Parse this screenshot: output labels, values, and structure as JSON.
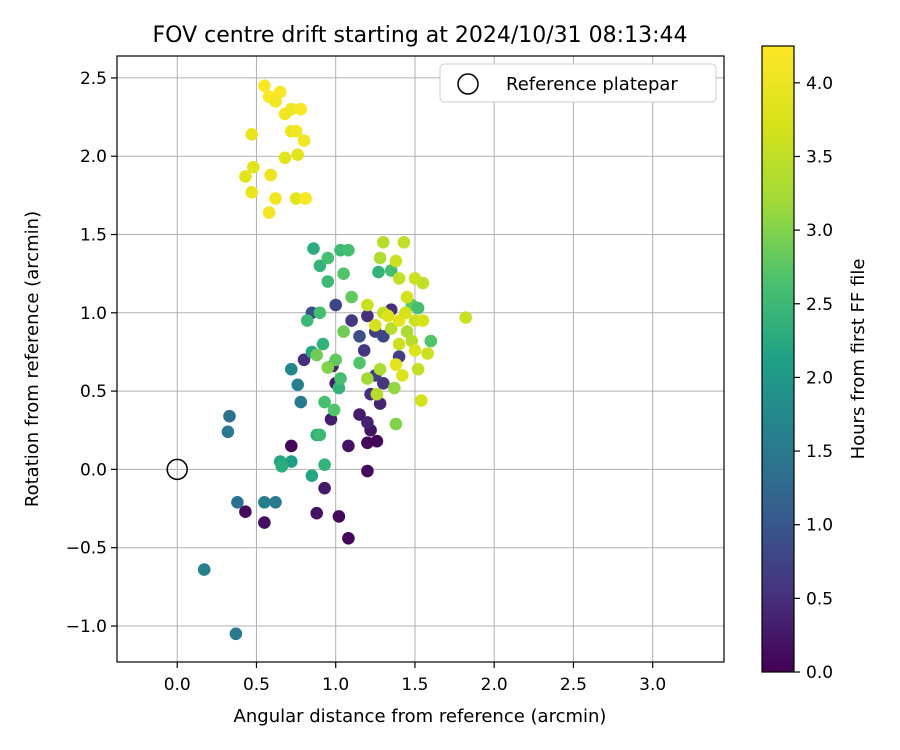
{
  "chart_data": {
    "type": "scatter",
    "title": "FOV centre drift starting at 2024/10/31 08:13:44",
    "xlabel": "Angular distance from reference (arcmin)",
    "ylabel": "Rotation from reference (arcmin)",
    "xlim": [
      -0.38,
      3.45
    ],
    "ylim": [
      -1.23,
      2.64
    ],
    "xticks": [
      0.0,
      0.5,
      1.0,
      1.5,
      2.0,
      2.5,
      3.0
    ],
    "xtick_labels": [
      "0.0",
      "0.5",
      "1.0",
      "1.5",
      "2.0",
      "2.5",
      "3.0"
    ],
    "yticks": [
      -1.0,
      -0.5,
      0.0,
      0.5,
      1.0,
      1.5,
      2.0,
      2.5
    ],
    "ytick_labels": [
      "−1.0",
      "−0.5",
      "0.0",
      "0.5",
      "1.0",
      "1.5",
      "2.0",
      "2.5"
    ],
    "grid": true,
    "legend": {
      "position": "top-right",
      "entries": [
        {
          "label": "Reference platepar",
          "marker": "open-circle"
        }
      ]
    },
    "reference_point": {
      "x": 0.0,
      "y": 0.0
    },
    "colorbar": {
      "label": "Hours from first FF file",
      "range": [
        0.0,
        4.25
      ],
      "ticks": [
        0.0,
        0.5,
        1.0,
        1.5,
        2.0,
        2.5,
        3.0,
        3.5,
        4.0
      ],
      "tick_labels": [
        "0.0",
        "0.5",
        "1.0",
        "1.5",
        "2.0",
        "2.5",
        "3.0",
        "3.5",
        "4.0"
      ],
      "colormap": "viridis"
    },
    "series": [
      {
        "points": [
          {
            "x": 0.43,
            "y": -0.27,
            "c": 0.1
          },
          {
            "x": 0.55,
            "y": -0.34,
            "c": 0.15
          },
          {
            "x": 0.72,
            "y": 0.15,
            "c": 0.05
          },
          {
            "x": 0.88,
            "y": -0.28,
            "c": 0.2
          },
          {
            "x": 1.02,
            "y": -0.3,
            "c": 0.1
          },
          {
            "x": 1.08,
            "y": -0.44,
            "c": 0.05
          },
          {
            "x": 0.93,
            "y": -0.12,
            "c": 0.25
          },
          {
            "x": 1.08,
            "y": 0.15,
            "c": 0.2
          },
          {
            "x": 1.2,
            "y": 0.17,
            "c": 0.1
          },
          {
            "x": 1.26,
            "y": 0.18,
            "c": 0.05
          },
          {
            "x": 1.2,
            "y": -0.01,
            "c": 0.1
          },
          {
            "x": 1.22,
            "y": 0.25,
            "c": 0.2
          },
          {
            "x": 1.15,
            "y": 0.35,
            "c": 0.3
          },
          {
            "x": 1.2,
            "y": 0.3,
            "c": 0.35
          },
          {
            "x": 0.97,
            "y": 0.32,
            "c": 0.3
          },
          {
            "x": 1.28,
            "y": 0.42,
            "c": 0.4
          },
          {
            "x": 1.22,
            "y": 0.48,
            "c": 0.5
          },
          {
            "x": 1.3,
            "y": 0.55,
            "c": 0.6
          },
          {
            "x": 1.25,
            "y": 0.6,
            "c": 0.7
          },
          {
            "x": 1.0,
            "y": 0.55,
            "c": 0.3
          },
          {
            "x": 0.8,
            "y": 0.7,
            "c": 0.5
          },
          {
            "x": 0.98,
            "y": 0.66,
            "c": 0.4
          },
          {
            "x": 1.1,
            "y": 0.95,
            "c": 0.6
          },
          {
            "x": 1.2,
            "y": 0.98,
            "c": 0.5
          },
          {
            "x": 1.25,
            "y": 0.88,
            "c": 0.7
          },
          {
            "x": 1.3,
            "y": 0.85,
            "c": 0.8
          },
          {
            "x": 1.18,
            "y": 0.76,
            "c": 0.6
          },
          {
            "x": 1.0,
            "y": 1.05,
            "c": 0.8
          },
          {
            "x": 0.85,
            "y": 1.0,
            "c": 0.9
          },
          {
            "x": 1.35,
            "y": 1.02,
            "c": 0.5
          },
          {
            "x": 1.4,
            "y": 0.72,
            "c": 0.7
          },
          {
            "x": 1.15,
            "y": 0.85,
            "c": 0.9
          },
          {
            "x": 0.33,
            "y": 0.34,
            "c": 1.4
          },
          {
            "x": 0.32,
            "y": 0.24,
            "c": 1.5
          },
          {
            "x": 0.38,
            "y": -0.21,
            "c": 1.4
          },
          {
            "x": 0.55,
            "y": -0.21,
            "c": 1.6
          },
          {
            "x": 0.62,
            "y": -0.21,
            "c": 1.5
          },
          {
            "x": 0.17,
            "y": -0.64,
            "c": 1.6
          },
          {
            "x": 0.37,
            "y": -1.05,
            "c": 1.5
          },
          {
            "x": 0.78,
            "y": 0.43,
            "c": 1.5
          },
          {
            "x": 0.76,
            "y": 0.54,
            "c": 1.6
          },
          {
            "x": 0.72,
            "y": 0.64,
            "c": 1.7
          },
          {
            "x": 0.65,
            "y": 0.05,
            "c": 2.2
          },
          {
            "x": 0.72,
            "y": 0.05,
            "c": 2.1
          },
          {
            "x": 0.66,
            "y": 0.02,
            "c": 2.3
          },
          {
            "x": 0.85,
            "y": -0.04,
            "c": 2.2
          },
          {
            "x": 0.93,
            "y": 0.03,
            "c": 2.4
          },
          {
            "x": 0.88,
            "y": 0.22,
            "c": 2.3
          },
          {
            "x": 0.9,
            "y": 0.22,
            "c": 2.5
          },
          {
            "x": 0.93,
            "y": 0.43,
            "c": 2.6
          },
          {
            "x": 0.99,
            "y": 0.38,
            "c": 2.7
          },
          {
            "x": 1.02,
            "y": 0.52,
            "c": 2.4
          },
          {
            "x": 1.03,
            "y": 0.58,
            "c": 2.6
          },
          {
            "x": 0.85,
            "y": 0.75,
            "c": 2.2
          },
          {
            "x": 0.92,
            "y": 0.8,
            "c": 2.4
          },
          {
            "x": 0.82,
            "y": 0.95,
            "c": 2.5
          },
          {
            "x": 0.9,
            "y": 1.0,
            "c": 2.6
          },
          {
            "x": 0.95,
            "y": 1.2,
            "c": 2.5
          },
          {
            "x": 0.9,
            "y": 1.3,
            "c": 2.4
          },
          {
            "x": 0.86,
            "y": 1.41,
            "c": 2.3
          },
          {
            "x": 1.03,
            "y": 1.4,
            "c": 2.5
          },
          {
            "x": 1.08,
            "y": 1.4,
            "c": 2.6
          },
          {
            "x": 1.05,
            "y": 1.25,
            "c": 2.7
          },
          {
            "x": 0.95,
            "y": 1.35,
            "c": 2.6
          },
          {
            "x": 1.1,
            "y": 1.1,
            "c": 2.8
          },
          {
            "x": 1.05,
            "y": 0.88,
            "c": 2.9
          },
          {
            "x": 1.15,
            "y": 0.68,
            "c": 2.7
          },
          {
            "x": 1.27,
            "y": 1.26,
            "c": 2.4
          },
          {
            "x": 1.35,
            "y": 1.27,
            "c": 2.6
          },
          {
            "x": 1.48,
            "y": 1.05,
            "c": 2.8
          },
          {
            "x": 1.52,
            "y": 1.03,
            "c": 2.6
          },
          {
            "x": 1.6,
            "y": 0.82,
            "c": 2.7
          },
          {
            "x": 1.0,
            "y": 0.7,
            "c": 2.8
          },
          {
            "x": 0.95,
            "y": 0.65,
            "c": 3.0
          },
          {
            "x": 0.88,
            "y": 0.73,
            "c": 2.9
          },
          {
            "x": 1.2,
            "y": 0.58,
            "c": 3.2
          },
          {
            "x": 1.28,
            "y": 0.64,
            "c": 3.3
          },
          {
            "x": 1.37,
            "y": 0.52,
            "c": 3.1
          },
          {
            "x": 1.38,
            "y": 0.29,
            "c": 3.0
          },
          {
            "x": 1.26,
            "y": 0.48,
            "c": 3.4
          },
          {
            "x": 1.3,
            "y": 1.45,
            "c": 3.4
          },
          {
            "x": 1.43,
            "y": 1.45,
            "c": 3.5
          },
          {
            "x": 1.38,
            "y": 1.33,
            "c": 3.6
          },
          {
            "x": 1.28,
            "y": 1.35,
            "c": 3.3
          },
          {
            "x": 1.4,
            "y": 1.22,
            "c": 3.5
          },
          {
            "x": 1.5,
            "y": 1.22,
            "c": 3.6
          },
          {
            "x": 1.55,
            "y": 1.19,
            "c": 3.5
          },
          {
            "x": 1.45,
            "y": 1.1,
            "c": 3.7
          },
          {
            "x": 1.5,
            "y": 0.95,
            "c": 3.6
          },
          {
            "x": 1.55,
            "y": 0.95,
            "c": 3.7
          },
          {
            "x": 1.58,
            "y": 0.74,
            "c": 3.6
          },
          {
            "x": 1.52,
            "y": 0.64,
            "c": 3.5
          },
          {
            "x": 1.54,
            "y": 0.44,
            "c": 3.7
          },
          {
            "x": 1.82,
            "y": 0.97,
            "c": 3.6
          },
          {
            "x": 1.3,
            "y": 1.0,
            "c": 3.5
          },
          {
            "x": 1.35,
            "y": 0.9,
            "c": 3.4
          },
          {
            "x": 1.4,
            "y": 0.8,
            "c": 3.6
          },
          {
            "x": 1.45,
            "y": 0.88,
            "c": 3.3
          },
          {
            "x": 1.25,
            "y": 0.92,
            "c": 3.7
          },
          {
            "x": 1.2,
            "y": 1.05,
            "c": 3.6
          },
          {
            "x": 1.33,
            "y": 0.98,
            "c": 3.8
          },
          {
            "x": 1.4,
            "y": 0.95,
            "c": 3.9
          },
          {
            "x": 1.44,
            "y": 1.0,
            "c": 3.7
          },
          {
            "x": 1.48,
            "y": 0.82,
            "c": 3.4
          },
          {
            "x": 1.5,
            "y": 0.76,
            "c": 3.8
          },
          {
            "x": 1.38,
            "y": 0.67,
            "c": 3.9
          },
          {
            "x": 1.42,
            "y": 0.6,
            "c": 3.8
          },
          {
            "x": 0.55,
            "y": 2.45,
            "c": 4.2
          },
          {
            "x": 0.58,
            "y": 2.38,
            "c": 4.2
          },
          {
            "x": 0.62,
            "y": 2.35,
            "c": 4.1
          },
          {
            "x": 0.65,
            "y": 2.41,
            "c": 4.2
          },
          {
            "x": 0.68,
            "y": 2.27,
            "c": 4.1
          },
          {
            "x": 0.72,
            "y": 2.3,
            "c": 4.1
          },
          {
            "x": 0.78,
            "y": 2.3,
            "c": 4.2
          },
          {
            "x": 0.72,
            "y": 2.16,
            "c": 4.0
          },
          {
            "x": 0.75,
            "y": 2.16,
            "c": 4.1
          },
          {
            "x": 0.8,
            "y": 2.1,
            "c": 4.1
          },
          {
            "x": 0.47,
            "y": 2.14,
            "c": 4.0
          },
          {
            "x": 0.68,
            "y": 1.99,
            "c": 3.9
          },
          {
            "x": 0.76,
            "y": 2.01,
            "c": 3.9
          },
          {
            "x": 0.48,
            "y": 1.93,
            "c": 3.9
          },
          {
            "x": 0.43,
            "y": 1.87,
            "c": 3.9
          },
          {
            "x": 0.59,
            "y": 1.88,
            "c": 4.0
          },
          {
            "x": 0.47,
            "y": 1.77,
            "c": 4.0
          },
          {
            "x": 0.62,
            "y": 1.73,
            "c": 4.1
          },
          {
            "x": 0.58,
            "y": 1.64,
            "c": 4.1
          },
          {
            "x": 0.75,
            "y": 1.73,
            "c": 3.9
          },
          {
            "x": 0.81,
            "y": 1.73,
            "c": 4.2
          }
        ]
      }
    ]
  }
}
